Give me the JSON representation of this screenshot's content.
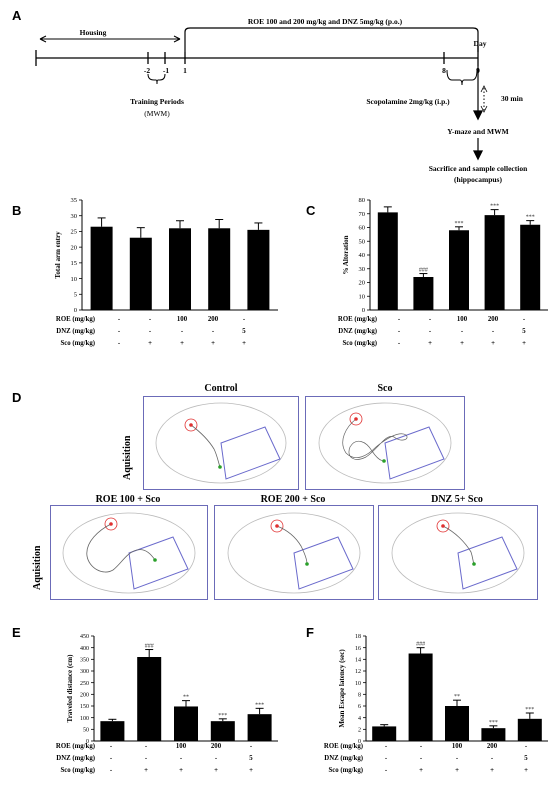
{
  "panels": {
    "A": "A",
    "B": "B",
    "C": "C",
    "D": "D",
    "E": "E",
    "F": "F"
  },
  "timeline": {
    "housing": "Housing",
    "treatment": "ROE 100 and 200 mg/kg and DNZ 5mg/kg (p.o.)",
    "day_label": "Day",
    "ticks": [
      "-2",
      "-1",
      "1",
      "8",
      "9"
    ],
    "training": "Training Periods",
    "training_sub": "(MWM)",
    "scopolamine": "Scopolamine 2mg/kg (i.p.)",
    "wait": "30 min",
    "test": "Y-maze and MWM",
    "sacrifice": "Sacrifice and sample collection",
    "sacrifice_sub": "(hippocampus)"
  },
  "treatments": {
    "row_labels": [
      "ROE (mg/kg)",
      "DNZ (mg/kg)",
      "Sco (mg/kg)"
    ],
    "roe": [
      "-",
      "-",
      "100",
      "200",
      "-"
    ],
    "dnz": [
      "-",
      "-",
      "-",
      "-",
      "5"
    ],
    "sco": [
      "-",
      "+",
      "+",
      "+",
      "+"
    ]
  },
  "chart_data": [
    {
      "id": "B",
      "type": "bar",
      "ylabel": "Total arm entry",
      "ylim": [
        0,
        35
      ],
      "yticks": [
        0,
        5,
        10,
        15,
        20,
        25,
        30,
        35
      ],
      "values": [
        26.5,
        23,
        26,
        26,
        25.5
      ],
      "errors": [
        2.8,
        3.2,
        2.4,
        2.8,
        2.2
      ],
      "annotations": [
        "",
        "",
        "",
        "",
        ""
      ]
    },
    {
      "id": "C",
      "type": "bar",
      "ylabel": "% Alteration",
      "ylim": [
        0,
        80
      ],
      "yticks": [
        0,
        10,
        20,
        30,
        40,
        50,
        60,
        70,
        80
      ],
      "values": [
        71,
        24,
        58,
        69,
        62
      ],
      "errors": [
        4,
        2.5,
        2.5,
        4,
        3
      ],
      "annotations": [
        "",
        "###",
        "***",
        "***",
        "***"
      ]
    },
    {
      "id": "E",
      "type": "bar",
      "ylabel": "Traveled distance (cm)",
      "ylim": [
        0,
        450
      ],
      "yticks": [
        0,
        50,
        100,
        150,
        200,
        250,
        300,
        350,
        400,
        450
      ],
      "values": [
        85,
        360,
        148,
        85,
        115
      ],
      "errors": [
        8,
        32,
        25,
        10,
        25
      ],
      "annotations": [
        "",
        "###",
        "**",
        "***",
        "***"
      ]
    },
    {
      "id": "F",
      "type": "bar",
      "ylabel": "Mean Escape latency (sec)",
      "ylim": [
        0,
        18
      ],
      "yticks": [
        0,
        2,
        4,
        6,
        8,
        10,
        12,
        14,
        16,
        18
      ],
      "values": [
        2.5,
        15,
        6,
        2.2,
        3.8
      ],
      "errors": [
        0.3,
        1,
        1,
        0.4,
        1
      ],
      "annotations": [
        "",
        "###",
        "**",
        "***",
        "***"
      ]
    }
  ],
  "maze": {
    "row_label": "Aquisition",
    "titles": [
      "Control",
      "Sco",
      "ROE 100 + Sco",
      "ROE 200 + Sco",
      "DNZ 5+ Sco"
    ]
  },
  "colors": {
    "platform_circle": "#e03030",
    "start_point": "#2aa02a",
    "box_border": "#6b6bb8",
    "arena": "#bbbbbb",
    "quadrant": "#6a6acc"
  }
}
